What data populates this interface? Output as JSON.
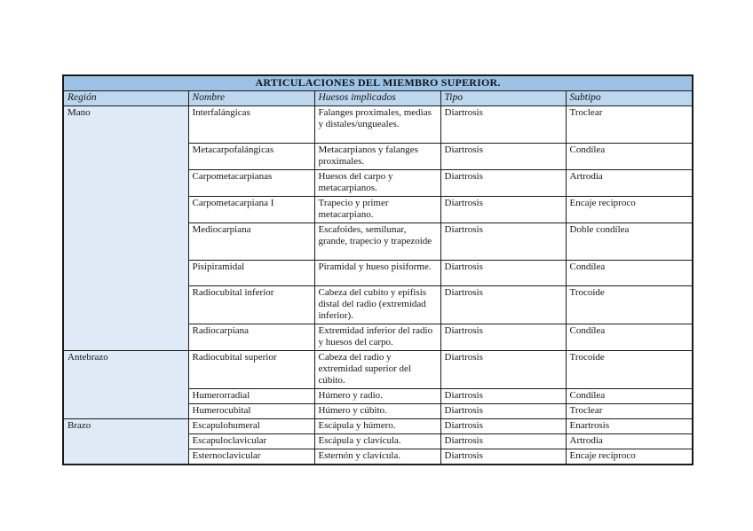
{
  "table": {
    "title": "ARTICULACIONES DEL MIEMBRO SUPERIOR.",
    "columns": [
      "Región",
      "Nombre",
      "Huesos implicados",
      "Tipo",
      "Subtipo"
    ],
    "colors": {
      "title_bg": "#9cc3e6",
      "header_bg": "#bdd7ee",
      "region_bg": "#deeaf6",
      "border": "#1a1a1a",
      "page_bg": "#ffffff"
    },
    "regions": [
      {
        "name": "Mano",
        "rows": [
          {
            "nombre": "Interfalángicas",
            "huesos": "Falanges proximales, medias y distales/ungueales.",
            "tipo": "Diartrosis",
            "subtipo": "Troclear",
            "lines": 3
          },
          {
            "nombre": "Metacarpofalángicas",
            "huesos": "Metacarpianos y falanges proximales.",
            "tipo": "Diartrosis",
            "subtipo": "Condílea",
            "lines": 2
          },
          {
            "nombre": "Carpometacarpianas",
            "huesos": "Huesos del carpo y metacarpianos.",
            "tipo": "Diartrosis",
            "subtipo": "Artrodia",
            "lines": 2
          },
          {
            "nombre": "Carpometacarpiana I",
            "huesos": "Trapecio y primer metacarpiano.",
            "tipo": "Diartrosis",
            "subtipo": "Encaje recíproco",
            "lines": 2
          },
          {
            "nombre": "Mediocarpiana",
            "huesos": "Escafoides, semilunar, grande, trapecio y trapezoide",
            "tipo": "Diartrosis",
            "subtipo": "Doble condílea",
            "lines": 3
          },
          {
            "nombre": "Pisipiramidal",
            "huesos": "Piramidal y hueso pisiforme.",
            "tipo": "Diartrosis",
            "subtipo": "Condílea",
            "lines": 2
          },
          {
            "nombre": "Radiocubital inferior",
            "huesos": "Cabeza del cubito y epífisis distal del radio (extremidad inferior).",
            "tipo": "Diartrosis",
            "subtipo": "Trocoide",
            "lines": 3
          },
          {
            "nombre": "Radiocarpiana",
            "huesos": "Extremidad inferior del radio y huesos del carpo.",
            "tipo": "Diartrosis",
            "subtipo": "Condílea",
            "lines": 2
          }
        ]
      },
      {
        "name": "Antebrazo",
        "rows": [
          {
            "nombre": "Radiocubital superior",
            "huesos": "Cabeza del radio y extremidad superior del cúbito.",
            "tipo": "Diartrosis",
            "subtipo": "Trocoide",
            "lines": 3
          },
          {
            "nombre": "Humerorradial",
            "huesos": "Húmero y radio.",
            "tipo": "Diartrosis",
            "subtipo": "Condílea",
            "lines": 1
          },
          {
            "nombre": "Humerocubital",
            "huesos": "Húmero y cúbito.",
            "tipo": "Diartrosis",
            "subtipo": "Troclear",
            "lines": 1
          }
        ]
      },
      {
        "name": "Brazo",
        "rows": [
          {
            "nombre": "Escapulohumeral",
            "huesos": "Escápula y húmero.",
            "tipo": "Diartrosis",
            "subtipo": "Enartrosis",
            "lines": 1
          },
          {
            "nombre": "Escapuloclavicular",
            "huesos": "Escápula y clavícula.",
            "tipo": "Diartrosis",
            "subtipo": "Artrodia",
            "lines": 1
          },
          {
            "nombre": "Esternoclavicular",
            "huesos": "Esternón y clavícula.",
            "tipo": "Diartrosis",
            "subtipo": "Encaje recíproco",
            "lines": 1
          }
        ]
      }
    ]
  }
}
